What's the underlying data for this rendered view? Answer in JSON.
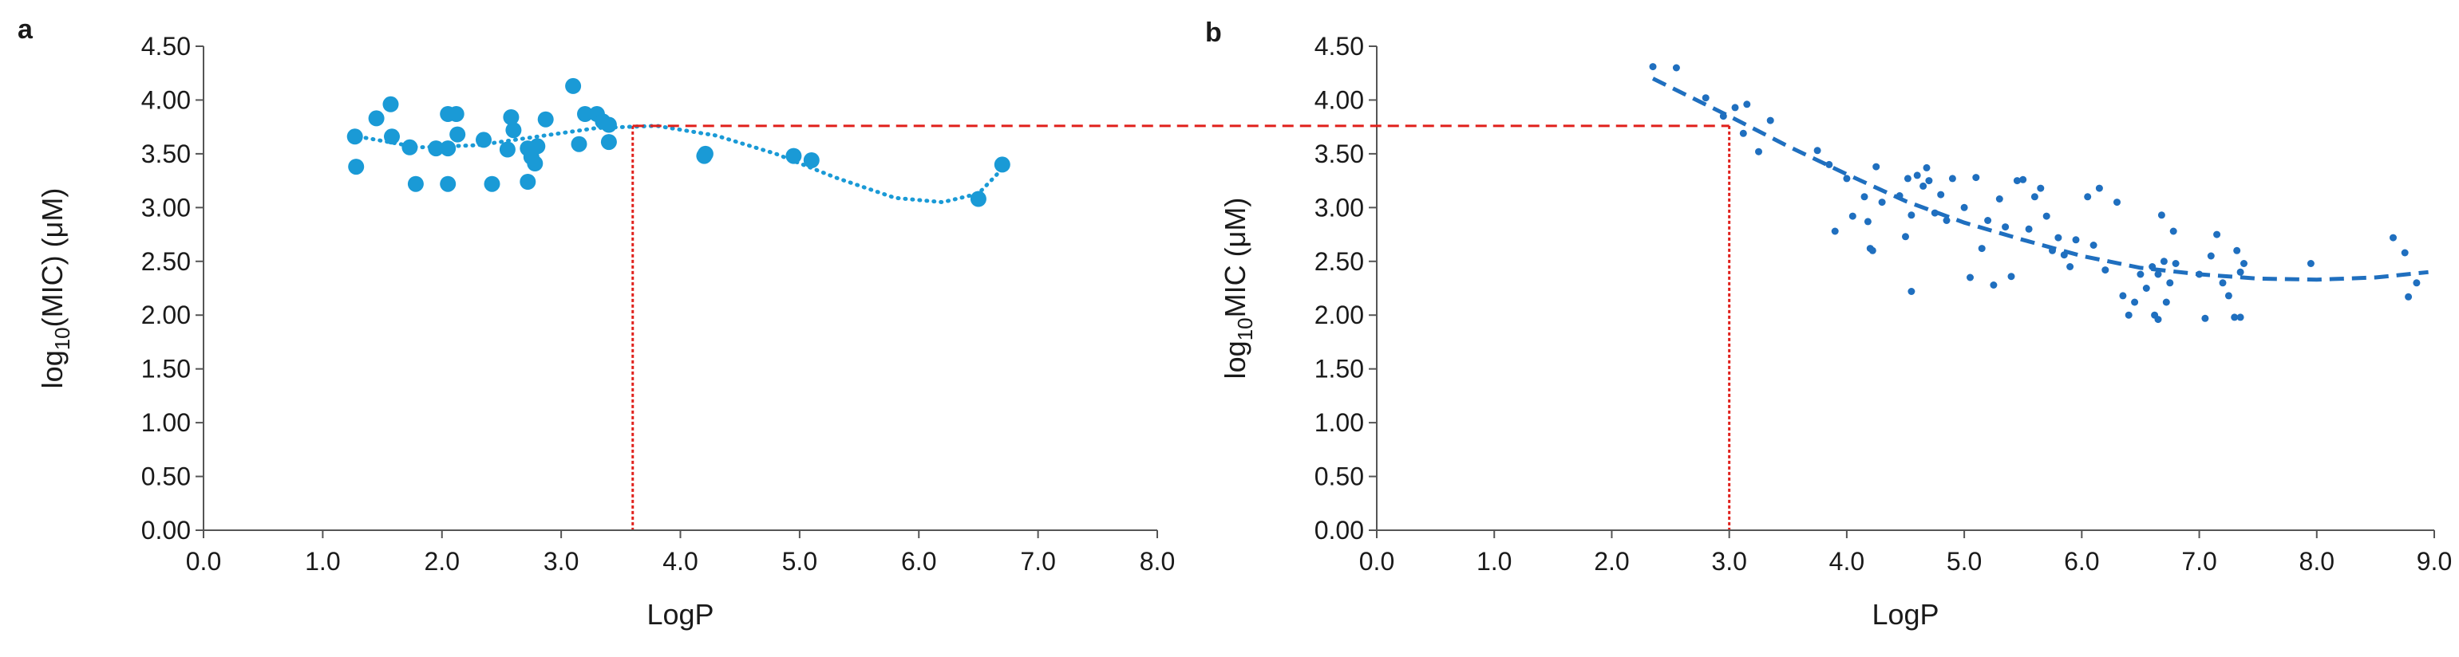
{
  "chart_data": [
    {
      "type": "scatter",
      "panel": "a",
      "xlabel": "LogP",
      "ylabel_parts": {
        "pre": "log",
        "sub": "10",
        "post": "(MIC) (μM)"
      },
      "xlim": [
        0,
        8
      ],
      "ylim": [
        0,
        4.5
      ],
      "x_ticks": [
        "0.0",
        "1.0",
        "2.0",
        "3.0",
        "4.0",
        "5.0",
        "6.0",
        "7.0",
        "8.0"
      ],
      "y_ticks": [
        "0.00",
        "0.50",
        "1.00",
        "1.50",
        "2.00",
        "2.50",
        "3.00",
        "3.50",
        "4.00",
        "4.50"
      ],
      "marker_color": "#1a9ad6",
      "points": [
        [
          1.27,
          3.66
        ],
        [
          1.28,
          3.38
        ],
        [
          1.45,
          3.83
        ],
        [
          1.57,
          3.96
        ],
        [
          1.58,
          3.66
        ],
        [
          1.73,
          3.56
        ],
        [
          1.78,
          3.22
        ],
        [
          1.95,
          3.55
        ],
        [
          2.05,
          3.87
        ],
        [
          2.05,
          3.55
        ],
        [
          2.05,
          3.22
        ],
        [
          2.12,
          3.87
        ],
        [
          2.13,
          3.68
        ],
        [
          2.35,
          3.63
        ],
        [
          2.42,
          3.22
        ],
        [
          2.55,
          3.54
        ],
        [
          2.58,
          3.84
        ],
        [
          2.6,
          3.72
        ],
        [
          2.72,
          3.55
        ],
        [
          2.72,
          3.24
        ],
        [
          2.75,
          3.47
        ],
        [
          2.78,
          3.41
        ],
        [
          2.8,
          3.57
        ],
        [
          2.87,
          3.82
        ],
        [
          3.1,
          4.13
        ],
        [
          3.15,
          3.59
        ],
        [
          3.2,
          3.87
        ],
        [
          3.3,
          3.87
        ],
        [
          3.35,
          3.8
        ],
        [
          3.4,
          3.61
        ],
        [
          3.4,
          3.77
        ],
        [
          4.2,
          3.48
        ],
        [
          4.21,
          3.5
        ],
        [
          4.95,
          3.48
        ],
        [
          5.1,
          3.44
        ],
        [
          6.5,
          3.08
        ],
        [
          6.7,
          3.4
        ]
      ],
      "trend": {
        "style": "dotted",
        "color": "#1a9ad6",
        "points": [
          [
            1.3,
            3.66
          ],
          [
            1.8,
            3.56
          ],
          [
            2.3,
            3.58
          ],
          [
            2.8,
            3.66
          ],
          [
            3.3,
            3.74
          ],
          [
            3.8,
            3.76
          ],
          [
            4.3,
            3.67
          ],
          [
            4.8,
            3.5
          ],
          [
            5.3,
            3.28
          ],
          [
            5.8,
            3.09
          ],
          [
            6.2,
            3.05
          ],
          [
            6.5,
            3.13
          ],
          [
            6.7,
            3.36
          ]
        ]
      },
      "reference": {
        "x": 3.6,
        "y": 3.76,
        "color": "#e0201b"
      }
    },
    {
      "type": "scatter",
      "panel": "b",
      "xlabel": "LogP",
      "ylabel_parts": {
        "pre": "log",
        "sub": "10",
        "post": "MIC (μM)"
      },
      "xlim": [
        0,
        9
      ],
      "ylim": [
        0,
        4.5
      ],
      "x_ticks": [
        "0.0",
        "1.0",
        "2.0",
        "3.0",
        "4.0",
        "5.0",
        "6.0",
        "7.0",
        "8.0",
        "9.0"
      ],
      "y_ticks": [
        "0.00",
        "0.50",
        "1.00",
        "1.50",
        "2.00",
        "2.50",
        "3.00",
        "3.50",
        "4.00",
        "4.50"
      ],
      "marker_color": "#1f6fbf",
      "points": [
        [
          2.35,
          4.31
        ],
        [
          2.55,
          4.3
        ],
        [
          2.8,
          4.02
        ],
        [
          2.95,
          3.85
        ],
        [
          3.05,
          3.93
        ],
        [
          3.12,
          3.69
        ],
        [
          3.15,
          3.96
        ],
        [
          3.25,
          3.52
        ],
        [
          3.35,
          3.81
        ],
        [
          3.75,
          3.53
        ],
        [
          3.85,
          3.4
        ],
        [
          3.9,
          2.78
        ],
        [
          4.0,
          3.27
        ],
        [
          4.05,
          2.92
        ],
        [
          4.15,
          3.1
        ],
        [
          4.18,
          2.87
        ],
        [
          4.2,
          2.62
        ],
        [
          4.22,
          2.6
        ],
        [
          4.25,
          3.38
        ],
        [
          4.3,
          3.05
        ],
        [
          4.45,
          3.11
        ],
        [
          4.5,
          2.73
        ],
        [
          4.52,
          3.27
        ],
        [
          4.55,
          2.22
        ],
        [
          4.55,
          2.93
        ],
        [
          4.6,
          3.3
        ],
        [
          4.65,
          3.2
        ],
        [
          4.68,
          3.37
        ],
        [
          4.7,
          3.25
        ],
        [
          4.75,
          2.95
        ],
        [
          4.8,
          3.12
        ],
        [
          4.85,
          2.88
        ],
        [
          4.9,
          3.27
        ],
        [
          5.0,
          3.0
        ],
        [
          5.05,
          2.35
        ],
        [
          5.1,
          3.28
        ],
        [
          5.15,
          2.62
        ],
        [
          5.2,
          2.88
        ],
        [
          5.25,
          2.28
        ],
        [
          5.3,
          3.08
        ],
        [
          5.35,
          2.82
        ],
        [
          5.4,
          2.36
        ],
        [
          5.45,
          3.25
        ],
        [
          5.5,
          3.26
        ],
        [
          5.55,
          2.8
        ],
        [
          5.6,
          3.1
        ],
        [
          5.65,
          3.18
        ],
        [
          5.7,
          2.92
        ],
        [
          5.75,
          2.6
        ],
        [
          5.8,
          2.72
        ],
        [
          5.85,
          2.56
        ],
        [
          5.9,
          2.45
        ],
        [
          5.95,
          2.7
        ],
        [
          6.05,
          3.1
        ],
        [
          6.1,
          2.65
        ],
        [
          6.15,
          3.18
        ],
        [
          6.2,
          2.42
        ],
        [
          6.3,
          3.05
        ],
        [
          6.35,
          2.18
        ],
        [
          6.4,
          2.0
        ],
        [
          6.45,
          2.12
        ],
        [
          6.5,
          2.38
        ],
        [
          6.55,
          2.25
        ],
        [
          6.6,
          2.45
        ],
        [
          6.62,
          2.0
        ],
        [
          6.65,
          1.96
        ],
        [
          6.65,
          2.38
        ],
        [
          6.68,
          2.93
        ],
        [
          6.7,
          2.5
        ],
        [
          6.72,
          2.12
        ],
        [
          6.75,
          2.3
        ],
        [
          6.78,
          2.78
        ],
        [
          6.8,
          2.48
        ],
        [
          7.0,
          2.38
        ],
        [
          7.05,
          1.97
        ],
        [
          7.1,
          2.55
        ],
        [
          7.15,
          2.75
        ],
        [
          7.2,
          2.3
        ],
        [
          7.25,
          2.18
        ],
        [
          7.3,
          1.98
        ],
        [
          7.32,
          2.6
        ],
        [
          7.35,
          2.4
        ],
        [
          7.35,
          1.98
        ],
        [
          7.38,
          2.48
        ],
        [
          7.95,
          2.48
        ],
        [
          8.65,
          2.72
        ],
        [
          8.75,
          2.58
        ],
        [
          8.78,
          2.17
        ],
        [
          8.85,
          2.3
        ]
      ],
      "trend": {
        "style": "dashed",
        "color": "#1f6fbf",
        "points": [
          [
            2.35,
            4.2
          ],
          [
            3.0,
            3.85
          ],
          [
            3.5,
            3.57
          ],
          [
            4.0,
            3.31
          ],
          [
            4.5,
            3.06
          ],
          [
            5.0,
            2.86
          ],
          [
            5.5,
            2.7
          ],
          [
            6.0,
            2.55
          ],
          [
            6.5,
            2.44
          ],
          [
            7.0,
            2.38
          ],
          [
            7.5,
            2.34
          ],
          [
            8.0,
            2.33
          ],
          [
            8.5,
            2.35
          ],
          [
            8.95,
            2.4
          ]
        ]
      },
      "reference": {
        "x": 3.0,
        "y": 3.76,
        "color": "#e0201b"
      }
    }
  ]
}
